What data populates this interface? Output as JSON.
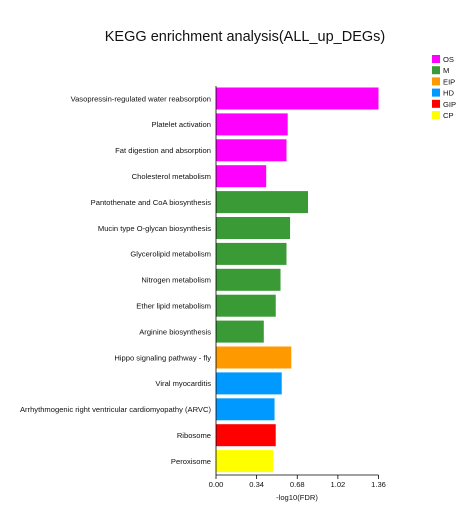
{
  "chart_data": {
    "type": "bar",
    "orientation": "horizontal",
    "title": "KEGG enrichment analysis(ALL_up_DEGs)",
    "xlabel": "-log10(FDR)",
    "ylabel": "",
    "xlim": [
      0,
      1.36
    ],
    "xticks": [
      "0.00",
      "0.34",
      "0.68",
      "1.02",
      "1.36"
    ],
    "grid": false,
    "legend_position": "top-right",
    "legend": [
      {
        "label": "OS",
        "color": "#ff00ff"
      },
      {
        "label": "M",
        "color": "#3a9a35"
      },
      {
        "label": "EIP",
        "color": "#ff9900"
      },
      {
        "label": "HD",
        "color": "#0099ff"
      },
      {
        "label": "GIP",
        "color": "#ff0000"
      },
      {
        "label": "CP",
        "color": "#ffff00"
      }
    ],
    "categories": [
      "Vasopressin-regulated water reabsorption",
      "Platelet activation",
      "Fat digestion and absorption",
      "Cholesterol metabolism",
      "Pantothenate and CoA biosynthesis",
      "Mucin type O-glycan biosynthesis",
      "Glycerolipid metabolism",
      "Nitrogen metabolism",
      "Ether lipid metabolism",
      "Arginine biosynthesis",
      "Hippo signaling pathway - fly",
      "Viral myocarditis",
      "Arrhythmogenic right ventricular cardiomyopathy (ARVC)",
      "Ribosome",
      "Peroxisome"
    ],
    "values": [
      1.36,
      0.6,
      0.59,
      0.42,
      0.77,
      0.62,
      0.59,
      0.54,
      0.5,
      0.4,
      0.63,
      0.55,
      0.49,
      0.5,
      0.48
    ],
    "groups": [
      "OS",
      "OS",
      "OS",
      "OS",
      "M",
      "M",
      "M",
      "M",
      "M",
      "M",
      "EIP",
      "HD",
      "HD",
      "GIP",
      "CP"
    ]
  }
}
